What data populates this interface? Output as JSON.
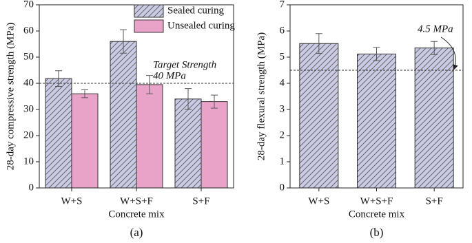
{
  "chart_data": [
    {
      "type": "bar",
      "y_label": "28-day compressive strength (MPa)",
      "x_label": "Concrete mix",
      "caption": "(a)",
      "categories": [
        "W+S",
        "W+S+F",
        "S+F"
      ],
      "series": [
        {
          "name": "Sealed curing",
          "color": "#c9cae3",
          "hatch": true,
          "values": [
            41.8,
            56,
            34
          ],
          "errors": [
            3,
            4.5,
            4
          ]
        },
        {
          "name": "Unsealed curing",
          "color": "#e9a3c9",
          "hatch": false,
          "values": [
            36,
            39.5,
            33
          ],
          "errors": [
            1.5,
            3.5,
            2.5
          ]
        }
      ],
      "ylim": [
        0,
        70
      ],
      "yticks": [
        0,
        10,
        20,
        30,
        40,
        50,
        60,
        70
      ],
      "legend": "upper center",
      "reference_line": {
        "value": 40,
        "labels": [
          "Target Strength",
          "40 MPa"
        ]
      }
    },
    {
      "type": "bar",
      "y_label": "28-day flexural strength (MPa)",
      "x_label": "Concrete mix",
      "caption": "(b)",
      "categories": [
        "W+S",
        "W+S+F",
        "S+F"
      ],
      "series": [
        {
          "color": "#c9cae3",
          "hatch": true,
          "values": [
            5.52,
            5.12,
            5.35
          ],
          "errors": [
            0.38,
            0.25,
            0.25
          ]
        }
      ],
      "ylim": [
        0,
        7
      ],
      "yticks": [
        0,
        1,
        2,
        3,
        4,
        5,
        6,
        7
      ],
      "reference_line": {
        "value": 4.5,
        "labels": [
          "4.5 MPa"
        ]
      }
    }
  ]
}
